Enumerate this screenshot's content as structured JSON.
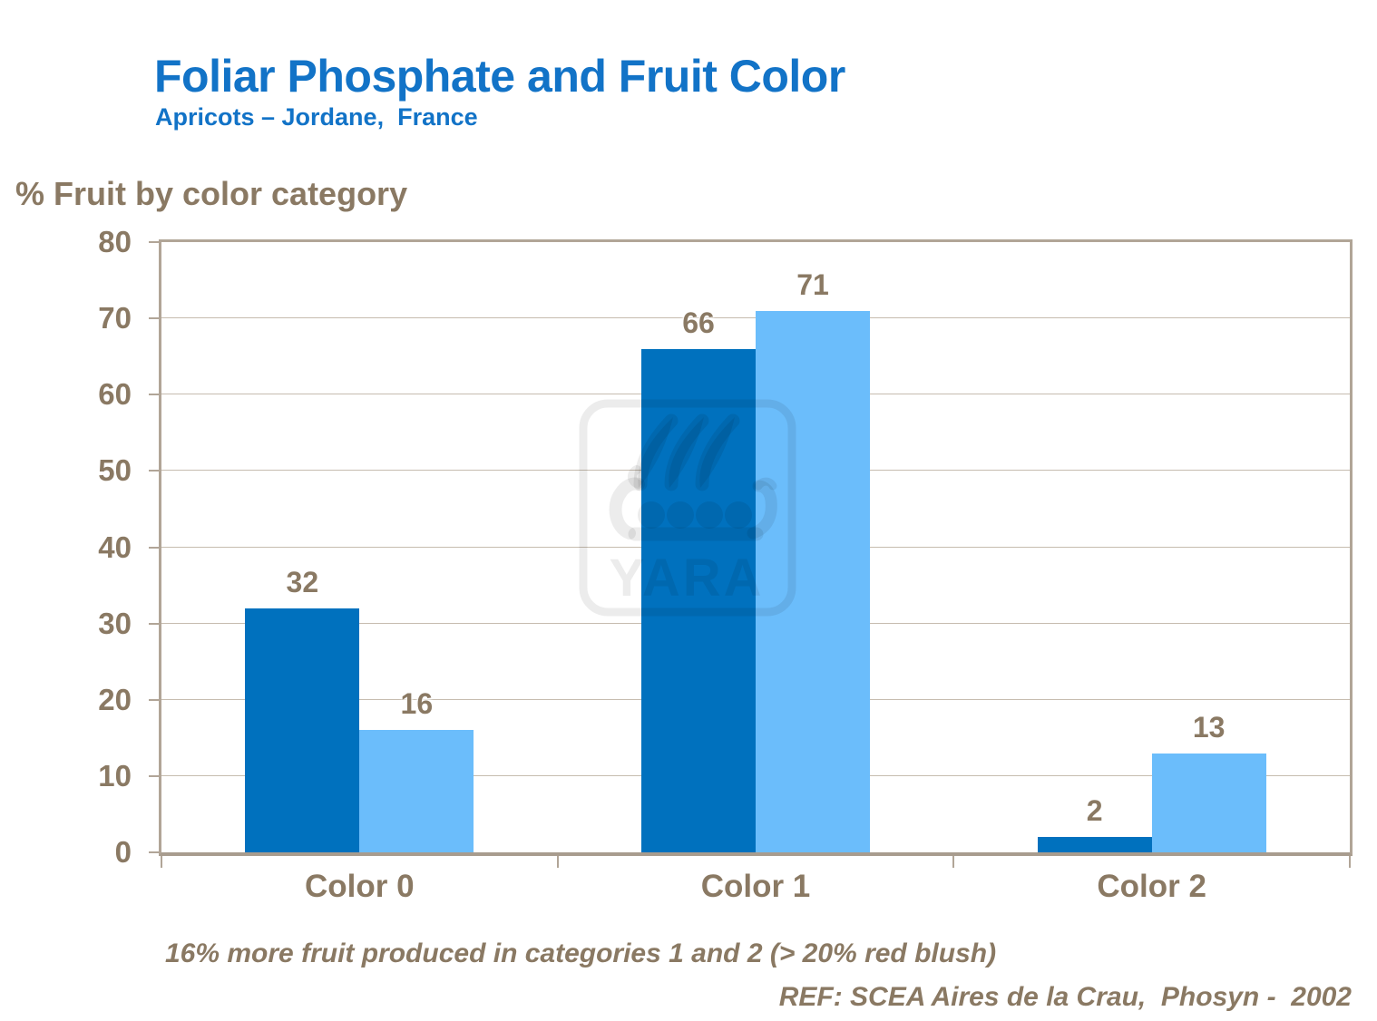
{
  "slide": {
    "title": "Foliar Phosphate and Fruit Color",
    "subtitle": "Apricots – Jordane,  France",
    "footnote": "16% more fruit produced in categories 1 and 2 (> 20% red blush)",
    "reference": "REF: SCEA Aires de la Crau,  Phosyn -  2002",
    "watermark_text": "YARA"
  },
  "chart_data": {
    "type": "bar",
    "title": "% Fruit by color category",
    "categories": [
      "Color 0",
      "Color 1",
      "Color 2"
    ],
    "series": [
      {
        "name": "dark blue bars",
        "color": "#0071BE",
        "values": [
          32,
          66,
          2
        ]
      },
      {
        "name": "light blue bars",
        "color": "#6BBDFB",
        "values": [
          16,
          71,
          13
        ]
      }
    ],
    "value_labels": [
      [
        32,
        66,
        2
      ],
      [
        16,
        71,
        13
      ]
    ],
    "ylim": [
      0,
      80
    ],
    "yticks": [
      0,
      10,
      20,
      30,
      40,
      50,
      60,
      70,
      80
    ],
    "xlabel": "",
    "ylabel": "% Fruit by color category",
    "grid": true,
    "legend": false
  },
  "colors": {
    "title_blue": "#1273C7",
    "text_brown": "#8A7963",
    "axis": "#B1A597",
    "axis_bottom": "#A89C8E",
    "gridline": "#C6BCAF",
    "series_dark": "#0071BE",
    "series_light": "#6BBDFB",
    "watermark": "rgba(0,0,0,0.075)"
  }
}
